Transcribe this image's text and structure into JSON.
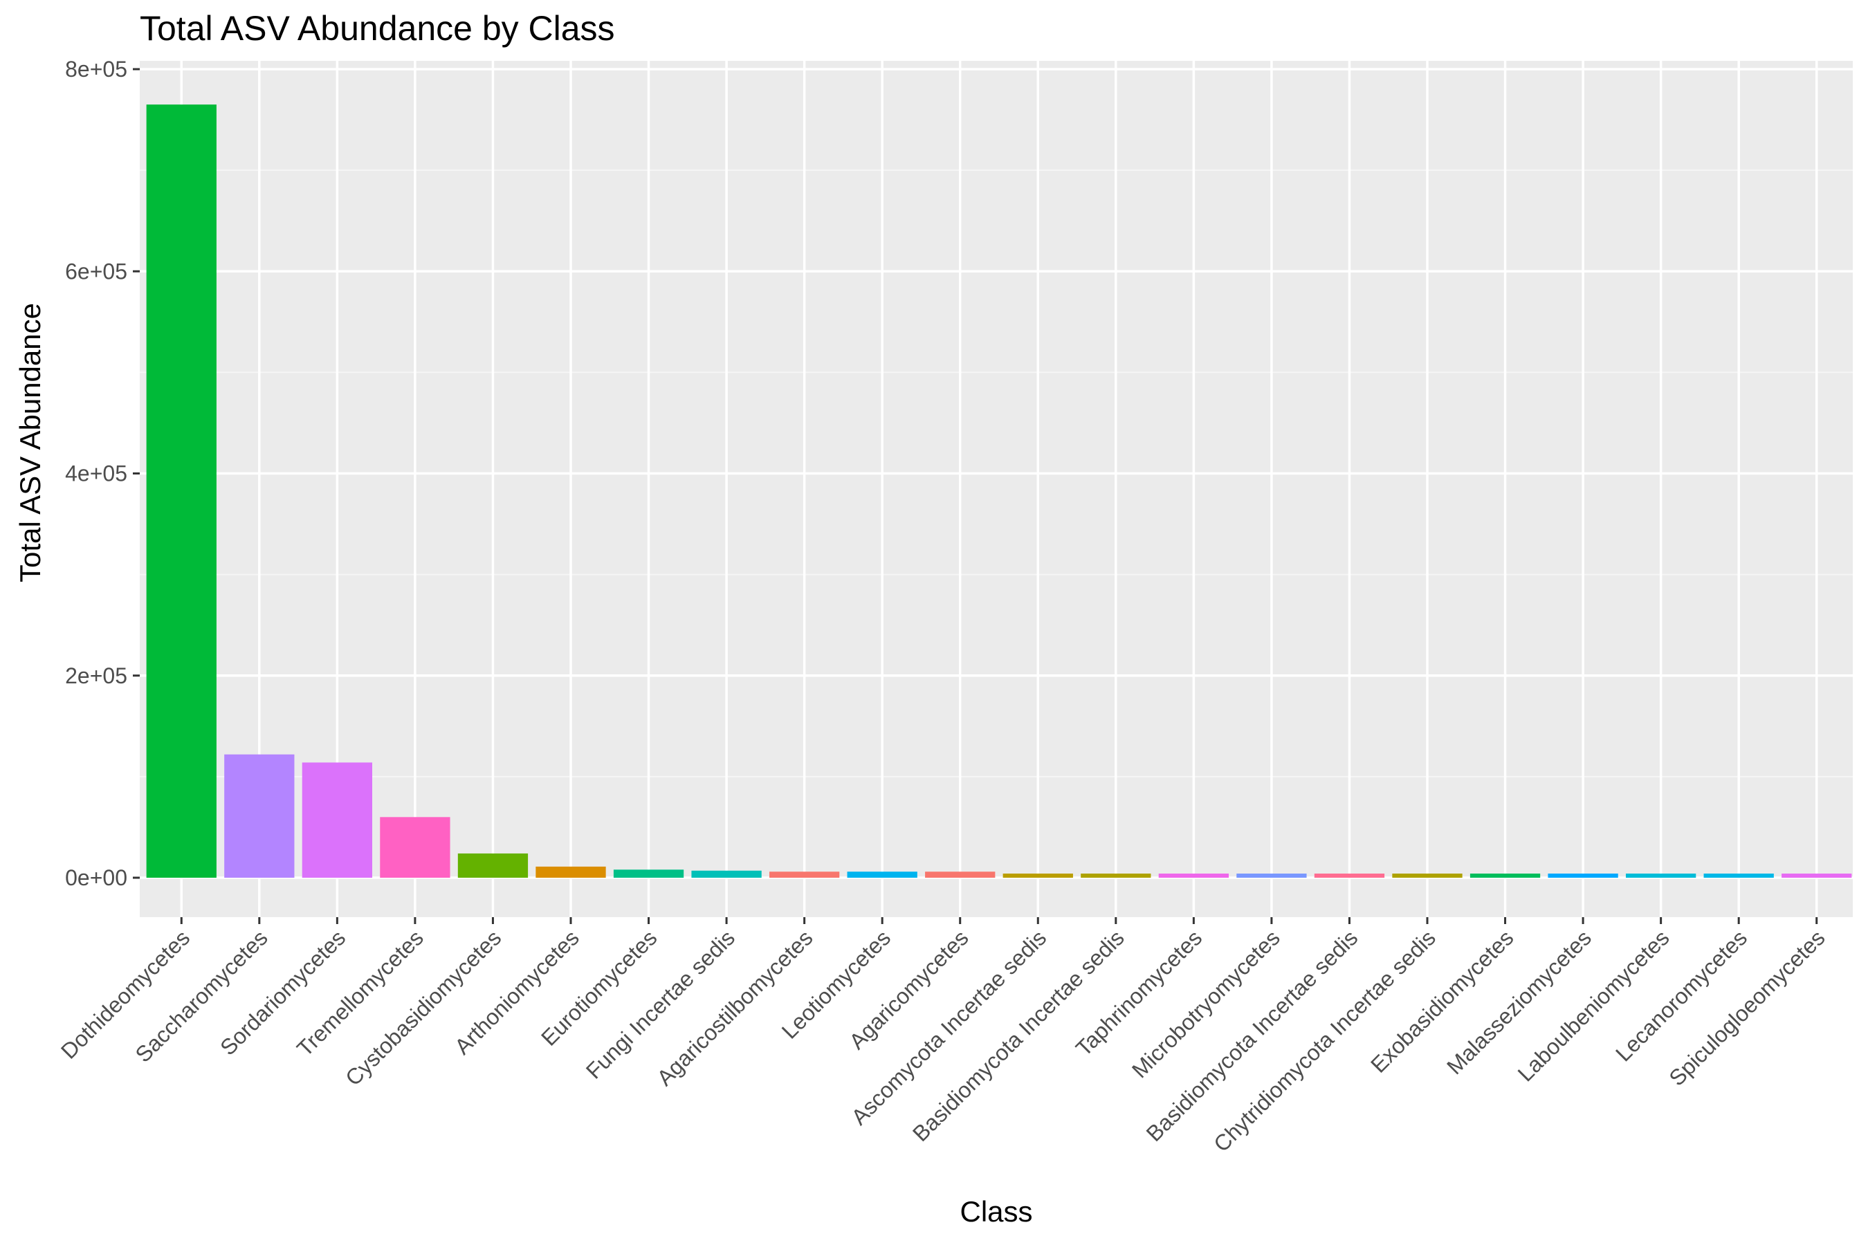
{
  "chart_data": {
    "type": "bar",
    "title": "Total ASV Abundance by Class",
    "xlabel": "Class",
    "ylabel": "Total ASV Abundance",
    "ylim": [
      0,
      800000
    ],
    "yticks": [
      "0e+00",
      "2e+05",
      "4e+05",
      "6e+05",
      "8e+05"
    ],
    "ytick_values": [
      0,
      200000,
      400000,
      600000,
      800000
    ],
    "grid": true,
    "legend": "none",
    "categories": [
      "Dothideomycetes",
      "Saccharomycetes",
      "Sordariomycetes",
      "Tremellomycetes",
      "Cystobasidiomycetes",
      "Arthoniomycetes",
      "Eurotiomycetes",
      "Fungi Incertae sedis",
      "Agaricostilbomycetes",
      "Leotiomycetes",
      "Agaricomycetes",
      "Ascomycota Incertae sedis",
      "Basidiomycota Incertae sedis",
      "Taphrinomycetes",
      "Microbotryomycetes",
      "Basidiomycota Incertae sedis",
      "Chytridiomycota Incertae sedis",
      "Exobasidiomycetes",
      "Malasseziomycetes",
      "Laboulbeniomycetes",
      "Lecanoromycetes",
      "Spiculogloeomycetes"
    ],
    "values": [
      765000,
      122000,
      114000,
      60000,
      24000,
      11000,
      8000,
      7000,
      6000,
      6000,
      6000,
      4000,
      3000,
      2500,
      3000,
      1800,
      1500,
      1200,
      1200,
      1200,
      1200,
      1000
    ],
    "colors": [
      "#00BA38",
      "#B385FF",
      "#DB72FB",
      "#FF61C3",
      "#64B200",
      "#DB8E00",
      "#00C087",
      "#00C0B8",
      "#F8766D",
      "#00B4EF",
      "#F8766D",
      "#BA9E00",
      "#AEA200",
      "#EF67EB",
      "#7997FF",
      "#FF6C91",
      "#AEA200",
      "#00BD5C",
      "#00A9FF",
      "#00BCD8",
      "#00B8E7",
      "#E76BF3"
    ]
  }
}
